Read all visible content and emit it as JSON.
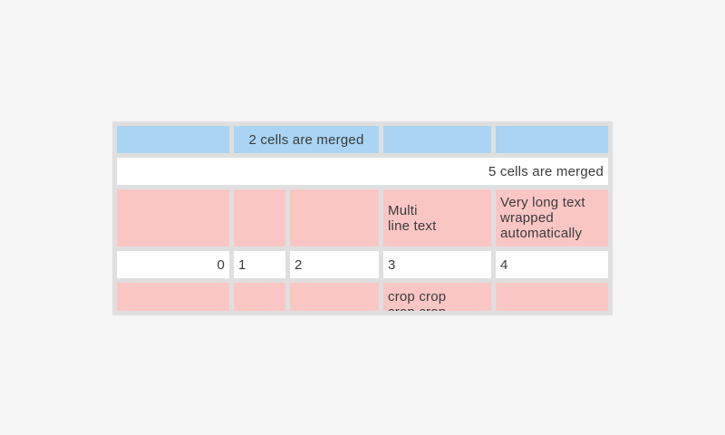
{
  "colors": {
    "page_bg": "#f5f5f5",
    "table_bg": "#dfdfdf",
    "cell_blue": "#a9d4f4",
    "cell_pink": "#fac6c4",
    "cell_white": "#ffffff",
    "text": "#3b3b3b"
  },
  "table": {
    "rows": [
      {
        "cells": [
          {
            "text": "",
            "span": 1,
            "bg": "blue",
            "align": "left"
          },
          {
            "text": "2 cells are merged",
            "span": 2,
            "bg": "blue",
            "align": "center"
          },
          {
            "text": "",
            "span": 1,
            "bg": "blue",
            "align": "left"
          },
          {
            "text": "",
            "span": 1,
            "bg": "blue",
            "align": "left"
          }
        ]
      },
      {
        "cells": [
          {
            "text": "5 cells are merged",
            "span": 5,
            "bg": "white",
            "align": "right"
          }
        ]
      },
      {
        "cells": [
          {
            "text": "",
            "span": 1,
            "bg": "pink",
            "align": "left"
          },
          {
            "text": "",
            "span": 1,
            "bg": "pink",
            "align": "left"
          },
          {
            "text": "",
            "span": 1,
            "bg": "pink",
            "align": "left"
          },
          {
            "text": "Multi\nline text",
            "span": 1,
            "bg": "pink",
            "align": "left"
          },
          {
            "text": "Very long text wrapped automatically",
            "span": 1,
            "bg": "pink",
            "align": "left"
          }
        ]
      },
      {
        "cells": [
          {
            "text": "0",
            "span": 1,
            "bg": "white",
            "align": "right"
          },
          {
            "text": "1",
            "span": 1,
            "bg": "white",
            "align": "left"
          },
          {
            "text": "2",
            "span": 1,
            "bg": "white",
            "align": "left"
          },
          {
            "text": "3",
            "span": 1,
            "bg": "white",
            "align": "left"
          },
          {
            "text": "4",
            "span": 1,
            "bg": "white",
            "align": "left"
          }
        ]
      },
      {
        "cells": [
          {
            "text": "",
            "span": 1,
            "bg": "pink",
            "align": "left"
          },
          {
            "text": "",
            "span": 1,
            "bg": "pink",
            "align": "left"
          },
          {
            "text": "",
            "span": 1,
            "bg": "pink",
            "align": "left"
          },
          {
            "text": "crop crop crop crop",
            "span": 1,
            "bg": "pink",
            "align": "left",
            "narrow": true
          },
          {
            "text": "",
            "span": 1,
            "bg": "pink",
            "align": "left"
          }
        ]
      }
    ]
  }
}
